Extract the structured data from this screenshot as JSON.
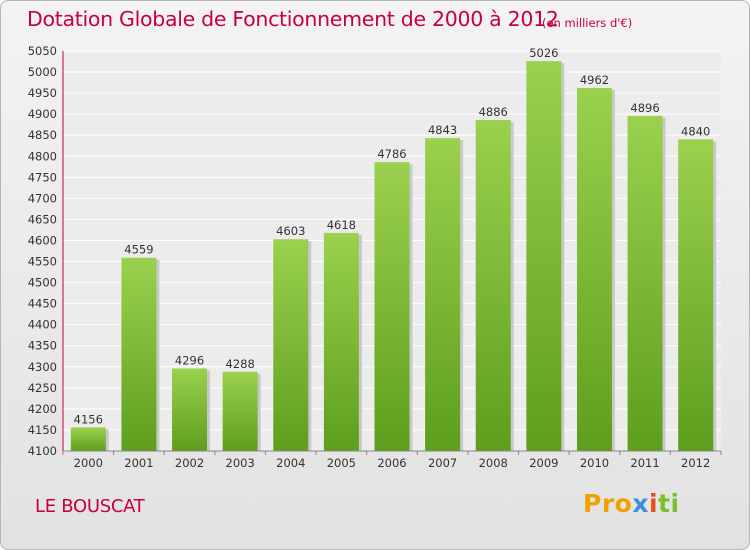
{
  "chart_data": {
    "type": "bar",
    "title": "Dotation Globale de Fonctionnement de 2000 à 2012",
    "subtitle": "(en milliers d'€)",
    "categories": [
      "2000",
      "2001",
      "2002",
      "2003",
      "2004",
      "2005",
      "2006",
      "2007",
      "2008",
      "2009",
      "2010",
      "2011",
      "2012"
    ],
    "values": [
      4156,
      4559,
      4296,
      4288,
      4603,
      4618,
      4786,
      4843,
      4886,
      5026,
      4962,
      4896,
      4840
    ],
    "ylim": [
      4100,
      5050
    ],
    "yticks": [
      "4100",
      "4150",
      "4200",
      "4250",
      "4300",
      "4350",
      "4400",
      "4450",
      "4500",
      "4550",
      "4600",
      "4650",
      "4700",
      "4750",
      "4800",
      "4850",
      "4900",
      "4950",
      "5000",
      "5050"
    ],
    "grid": true,
    "bar_color": "#7cc236",
    "bar_color_light": "#9ad14e",
    "bar_color_dark": "#5e9e1d"
  },
  "footer": {
    "city": "LE BOUSCAT",
    "logo": [
      "Pro",
      "x",
      "i",
      "ti"
    ]
  },
  "colors": {
    "title": "#c8003c"
  }
}
